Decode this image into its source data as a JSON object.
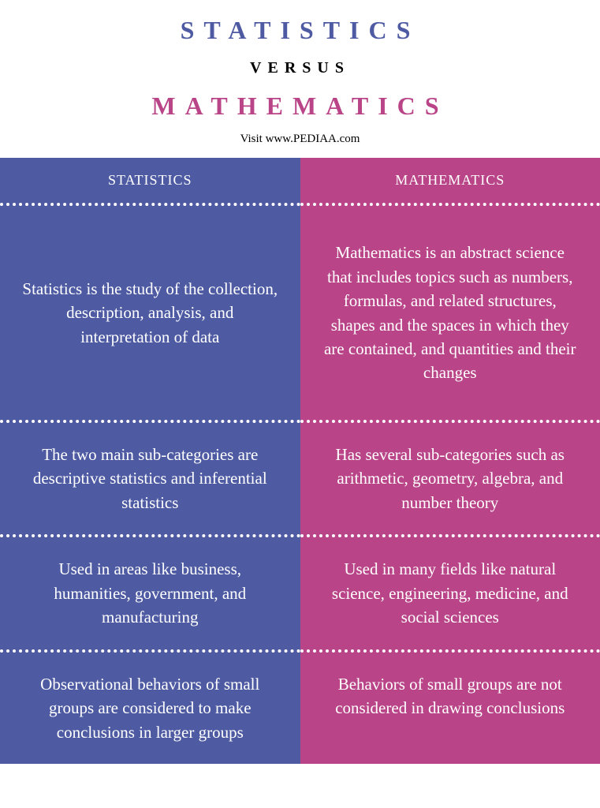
{
  "header": {
    "title_top": "STATISTICS",
    "title_versus": "VERSUS",
    "title_bottom": "MATHEMATICS",
    "subtitle": "Visit www.PEDIAA.com"
  },
  "colors": {
    "left_bg": "#4e5ba3",
    "right_bg": "#b94488",
    "left_title": "#4e5ba3",
    "right_title": "#b94488",
    "text": "#ffffff",
    "versus": "#000000"
  },
  "columns": {
    "left": {
      "header": "STATISTICS",
      "rows": [
        "Statistics is the study of the collection, description, analysis, and interpretation of data",
        "The two main sub-categories are descriptive statistics and inferential statistics",
        "Used in areas like business, humanities, government, and manufacturing",
        "Observational behaviors of small groups are considered to make conclusions in larger groups"
      ]
    },
    "right": {
      "header": "MATHEMATICS",
      "rows": [
        "Mathematics is an abstract science that includes topics such as numbers, formulas, and related structures, shapes and the spaces in which they are contained, and quantities and their changes",
        "Has several sub-categories such as arithmetic, geometry, algebra, and number theory",
        "Used in many fields like natural science, engineering, medicine, and social sciences",
        "Behaviors of small groups are not considered in drawing conclusions"
      ]
    }
  }
}
